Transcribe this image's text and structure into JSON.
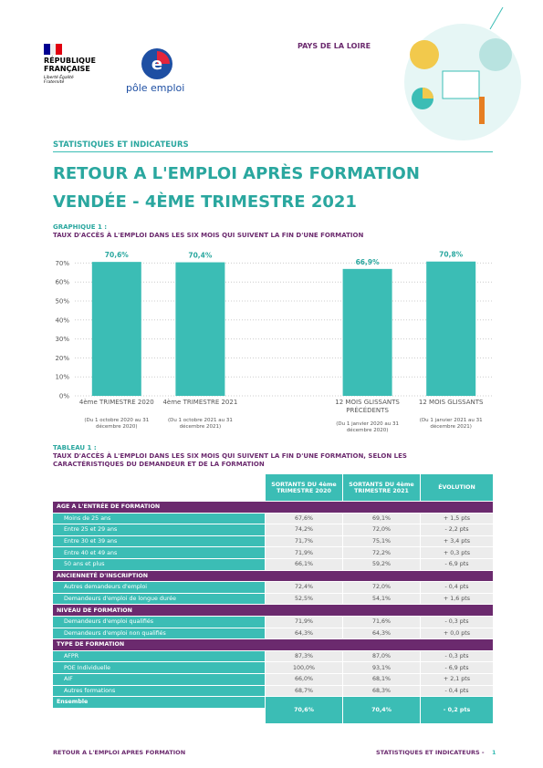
{
  "header": {
    "republic": "RÉPUBLIQUE FRANÇAISE",
    "motto": "Liberté Égalité Fraternité",
    "brand": "pôle emploi",
    "region": "PAYS DE LA LOIRE",
    "section": "STATISTIQUES ET INDICATEURS",
    "title_line1": "RETOUR A L'EMPLOI APRÈS FORMATION",
    "title_line2": "VENDÉE -  4ÈME TRIMESTRE 2021"
  },
  "chart_heading": "GRAPHIQUE 1 :",
  "chart_subtitle": "TAUX D'ACCÈS À L'EMPLOI DANS LES SIX MOIS QUI SUIVENT LA FIN D'UNE FORMATION",
  "chart_data": {
    "type": "bar",
    "color": "#3bbdb5",
    "categories": [
      "4ème TRIMESTRE 2020",
      "4ème TRIMESTRE 2021",
      null,
      "12 MOIS GLISSANTS PRÉCÉDENTS",
      "12 MOIS GLISSANTS"
    ],
    "category_notes": [
      "(Du 1 octobre 2020 au 31 décembre 2020)",
      "(Du 1 octobre 2021 au 31 décembre 2021)",
      null,
      "(Du 1 janvier 2020 au 31 décembre 2020)",
      "(Du 1 janvier 2021 au 31 décembre 2021)"
    ],
    "values": [
      70.6,
      70.4,
      null,
      66.9,
      70.8
    ],
    "value_labels": [
      "70,6%",
      "70,4%",
      null,
      "66,9%",
      "70,8%"
    ],
    "ylim": [
      0,
      75
    ],
    "yticks": [
      {
        "value": 0,
        "label": "0%"
      },
      {
        "value": 10,
        "label": "10%"
      },
      {
        "value": 20,
        "label": "20%"
      },
      {
        "value": 30,
        "label": "30%"
      },
      {
        "value": 40,
        "label": "40%"
      },
      {
        "value": 50,
        "label": "50%"
      },
      {
        "value": 60,
        "label": "60%"
      },
      {
        "value": 70,
        "label": "70%"
      }
    ],
    "grid": true
  },
  "table_heading": "TABLEAU 1 :",
  "table_subtitle": "TAUX D'ACCÈS À L'EMPLOI DANS LES SIX MOIS QUI SUIVENT LA FIN D'UNE FORMATION, SELON LES CARACTÉRISTIQUES DU DEMANDEUR ET DE LA FORMATION",
  "table": {
    "headers": [
      "SORTANTS DU 4ème TRIMESTRE 2020",
      "SORTANTS DU 4ème TRIMESTRE 2021",
      "ÉVOLUTION"
    ],
    "sections": [
      {
        "title": "AGE A L'ENTRÉE DE FORMATION",
        "rows": [
          [
            "Moins de 25 ans",
            "67,6%",
            "69,1%",
            "+ 1,5 pts"
          ],
          [
            "Entre 25 et 29 ans",
            "74,2%",
            "72,0%",
            "- 2,2 pts"
          ],
          [
            "Entre 30 et 39 ans",
            "71,7%",
            "75,1%",
            "+ 3,4 pts"
          ],
          [
            "Entre 40 et 49 ans",
            "71,9%",
            "72,2%",
            "+ 0,3 pts"
          ],
          [
            "50 ans et plus",
            "66,1%",
            "59,2%",
            "- 6,9 pts"
          ]
        ]
      },
      {
        "title": "ANCIENNETÉ D'INSCRIPTION",
        "rows": [
          [
            "Autres demandeurs d'emploi",
            "72,4%",
            "72,0%",
            "- 0,4 pts"
          ],
          [
            "Demandeurs d'emploi de longue durée",
            "52,5%",
            "54,1%",
            "+ 1,6 pts"
          ]
        ]
      },
      {
        "title": "NIVEAU DE FORMATION",
        "rows": [
          [
            "Demandeurs d'emploi qualifiés",
            "71,9%",
            "71,6%",
            "- 0,3 pts"
          ],
          [
            "Demandeurs d'emploi non qualifiés",
            "64,3%",
            "64,3%",
            "+ 0,0 pts"
          ]
        ]
      },
      {
        "title": "TYPE DE FORMATION",
        "rows": [
          [
            "AFPR",
            "87,3%",
            "87,0%",
            "- 0,3 pts"
          ],
          [
            "POE Individuelle",
            "100,0%",
            "93,1%",
            "- 6,9 pts"
          ],
          [
            "AIF",
            "66,0%",
            "68,1%",
            "+ 2,1 pts"
          ],
          [
            "Autres formations",
            "68,7%",
            "68,3%",
            "- 0,4 pts"
          ]
        ]
      }
    ],
    "total": [
      "Ensemble",
      "70,6%",
      "70,4%",
      "- 0,2 pts"
    ]
  },
  "footer": {
    "left": "RETOUR A L'EMPLOI APRES FORMATION",
    "right": "STATISTIQUES ET INDICATEURS -",
    "page": "1"
  }
}
